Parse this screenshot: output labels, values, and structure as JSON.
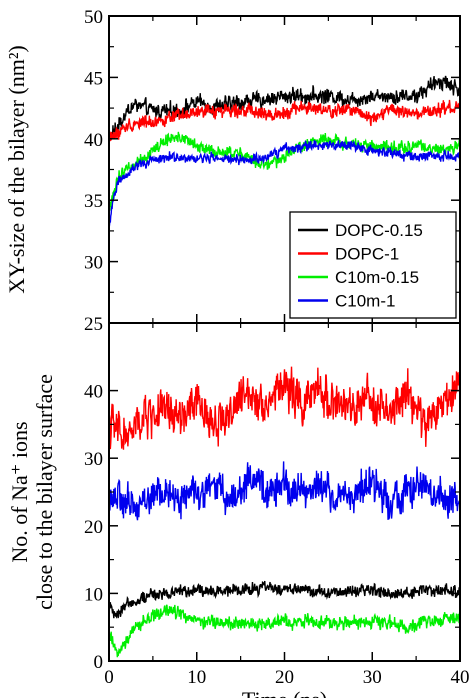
{
  "chart_data": [
    {
      "type": "line",
      "ylabel": "XY-size of the bilayer (nm²)",
      "xlim": [
        0,
        40
      ],
      "ylim": [
        25,
        50
      ],
      "yticks": [
        25,
        30,
        35,
        40,
        45,
        50
      ],
      "grid": false,
      "legend": {
        "placement": "bottom-right",
        "entries": [
          "DOPC-0.15",
          "DOPC-1",
          "C10m-0.15",
          "C10m-1"
        ]
      },
      "series": [
        {
          "name": "DOPC-0.15",
          "color": "#000000",
          "noise": 0.7,
          "x": [
            0,
            1,
            2,
            3,
            5,
            8,
            10,
            12,
            15,
            18,
            20,
            22,
            25,
            28,
            30,
            32,
            35,
            37,
            38,
            40
          ],
          "y": [
            40.0,
            41.0,
            42.2,
            42.8,
            42.3,
            42.3,
            43.0,
            42.6,
            43.0,
            43.2,
            43.5,
            43.5,
            43.5,
            43.2,
            43.5,
            43.5,
            43.5,
            44.4,
            44.8,
            43.9
          ]
        },
        {
          "name": "DOPC-1",
          "color": "#ff0000",
          "noise": 0.6,
          "x": [
            0,
            1,
            2,
            3,
            5,
            8,
            10,
            12,
            15,
            18,
            20,
            22,
            25,
            28,
            30,
            32,
            35,
            38,
            40
          ],
          "y": [
            40.2,
            40.4,
            41.0,
            41.3,
            41.4,
            41.8,
            42.1,
            42.3,
            42.4,
            41.9,
            42.2,
            42.6,
            42.2,
            42.4,
            41.7,
            42.4,
            41.9,
            42.4,
            42.6
          ]
        },
        {
          "name": "C10m-0.15",
          "color": "#00ee00",
          "noise": 0.55,
          "x": [
            0,
            0.5,
            1,
            2,
            3,
            4,
            5,
            6,
            7,
            8,
            10,
            12,
            15,
            17,
            18,
            20,
            22,
            25,
            28,
            30,
            33,
            35,
            38,
            40
          ],
          "y": [
            34.0,
            35.5,
            36.8,
            37.6,
            38.0,
            38.5,
            39.0,
            39.6,
            40.0,
            40.2,
            39.4,
            38.9,
            38.8,
            38.0,
            37.8,
            38.5,
            39.5,
            40.0,
            39.5,
            39.4,
            39.2,
            39.5,
            39.0,
            39.4
          ]
        },
        {
          "name": "C10m-1",
          "color": "#0000ee",
          "noise": 0.45,
          "x": [
            0,
            0.5,
            1,
            2,
            3,
            4,
            5,
            7,
            10,
            12,
            15,
            18,
            20,
            22,
            25,
            28,
            30,
            33,
            35,
            38,
            40
          ],
          "y": [
            32.5,
            35.0,
            36.5,
            37.2,
            37.8,
            38.0,
            38.2,
            38.6,
            38.3,
            38.5,
            38.2,
            38.5,
            39.2,
            39.4,
            39.5,
            39.4,
            39.0,
            38.8,
            38.5,
            38.6,
            38.5
          ]
        }
      ]
    },
    {
      "type": "line",
      "xlabel": "Time (ns)",
      "ylabel": "No. of Na⁺ ions close to the bilayer surface",
      "xlim": [
        0,
        40
      ],
      "ylim": [
        0,
        50
      ],
      "xticks": [
        0,
        10,
        20,
        30,
        40
      ],
      "yticks": [
        0,
        10,
        20,
        30,
        40
      ],
      "grid": false,
      "series": [
        {
          "name": "DOPC-1",
          "color": "#ff0000",
          "noise": 3.4,
          "x": [
            0,
            2,
            4,
            6,
            8,
            10,
            12,
            14,
            16,
            18,
            20,
            22,
            24,
            26,
            28,
            30,
            32,
            34,
            36,
            38,
            40
          ],
          "y": [
            35,
            33,
            36,
            37,
            36,
            38,
            35,
            37,
            40,
            38,
            41,
            38,
            40,
            38,
            37,
            39,
            36,
            40,
            35,
            38,
            41
          ]
        },
        {
          "name": "C10m-1",
          "color": "#0000ee",
          "noise": 2.8,
          "x": [
            0,
            2,
            4,
            6,
            8,
            10,
            12,
            14,
            16,
            18,
            20,
            22,
            24,
            26,
            28,
            30,
            32,
            34,
            36,
            38,
            40
          ],
          "y": [
            25,
            23,
            24,
            25,
            24,
            25,
            26,
            24,
            27,
            25,
            26,
            25,
            26,
            24,
            25,
            26,
            24,
            25,
            26,
            24,
            24
          ]
        },
        {
          "name": "DOPC-0.15",
          "color": "#000000",
          "noise": 1.0,
          "x": [
            0,
            1,
            2,
            4,
            6,
            8,
            10,
            14,
            18,
            22,
            26,
            30,
            34,
            38,
            40
          ],
          "y": [
            8,
            7,
            8.5,
            9.5,
            10,
            10.5,
            10.3,
            10.4,
            10.8,
            10.5,
            10.2,
            10.4,
            10.1,
            10.5,
            10.2
          ]
        },
        {
          "name": "C10m-0.15",
          "color": "#00ee00",
          "noise": 1.1,
          "x": [
            0,
            1,
            2,
            3,
            5,
            7,
            9,
            12,
            15,
            18,
            22,
            26,
            30,
            34,
            38,
            40
          ],
          "y": [
            4,
            1,
            3.5,
            5,
            6.5,
            7.5,
            6.5,
            5.5,
            5.5,
            5.5,
            6.0,
            5.5,
            5.8,
            5.3,
            6.2,
            6.8
          ]
        }
      ]
    }
  ]
}
